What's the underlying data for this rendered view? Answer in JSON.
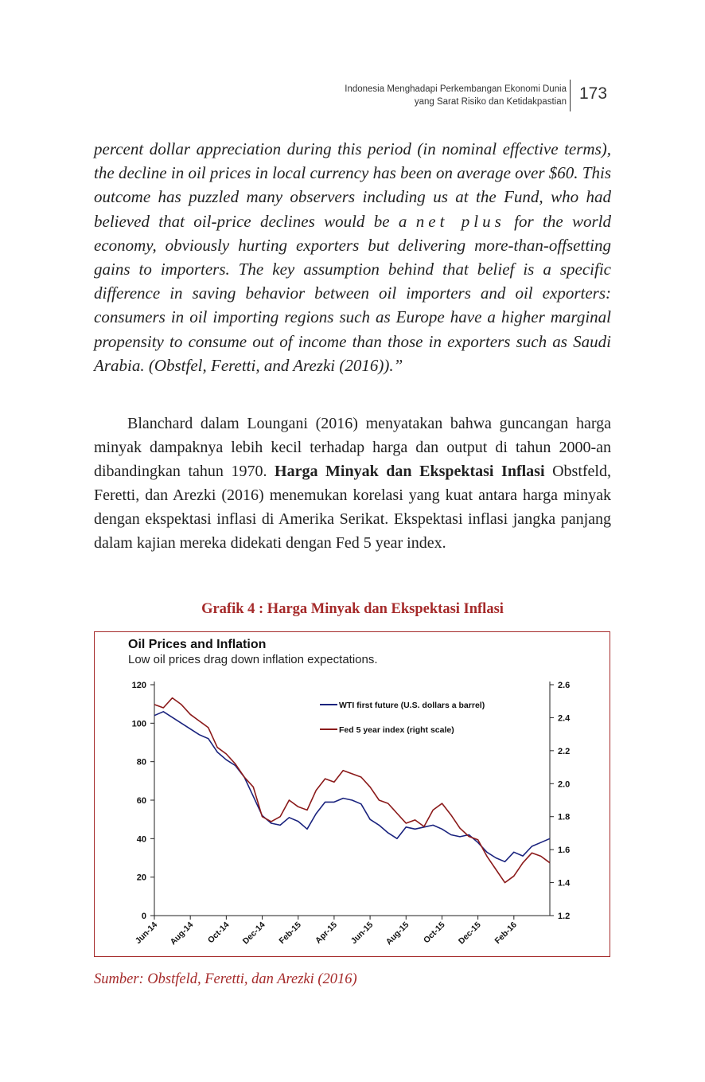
{
  "header": {
    "line1": "Indonesia Menghadapi Perkembangan Ekonomi Dunia",
    "line2": "yang Sarat Risiko dan Ketidakpastian",
    "page_number": "173"
  },
  "quote": {
    "part1": "percent dollar appreciation during this period (in nominal effective terms), the decline in oil prices in local currency has been on average over $60. This outcome has puzzled many observers including us at the Fund, who had believed that oil-price declines would be a ",
    "spaced": "net plus",
    "part2": " for the world economy, obviously hurting exporters but delivering more-than-offsetting gains to importers. The key assumption behind that belief is a specific difference in saving behavior between oil importers and oil exporters: consumers in oil importing regions such as Europe have a higher marginal propensity to consume out of income than those in exporters such as Saudi Arabia. (Obstfel, Feretti, and Arezki (2016)).”"
  },
  "paragraph": {
    "part1": "Blanchard dalam Loungani (2016) menyatakan bahwa guncangan harga minyak dampaknya lebih kecil terhadap harga dan output di tahun 2000-an dibandingkan tahun 1970. ",
    "bold": "Harga Minyak dan Ekspektasi Inflasi",
    "part2": " Obstfeld, Feretti, dan Arezki (2016) menemukan korelasi yang kuat antara harga minyak dengan ekspektasi inflasi di Amerika Serikat. Ekspektasi inflasi jangka panjang dalam kajian mereka didekati dengan Fed 5 year index."
  },
  "figure": {
    "caption": "Grafik 4 : Harga Minyak dan Ekspektasi Inflasi",
    "source": "Sumber: Obstfeld, Feretti, dan Arezki (2016)"
  },
  "chart_data": {
    "type": "line",
    "title": "Oil Prices and Inflation",
    "subtitle": "Low oil prices drag down inflation expectations.",
    "x_tick_labels": [
      "Jun-14",
      "Aug-14",
      "Oct-14",
      "Dec-14",
      "Feb-15",
      "Apr-15",
      "Jun-15",
      "Aug-15",
      "Oct-15",
      "Dec-15",
      "Feb-16"
    ],
    "left_axis": {
      "ylim": [
        0,
        120
      ],
      "ticks": [
        0,
        20,
        40,
        60,
        80,
        100,
        120
      ]
    },
    "right_axis": {
      "ylim": [
        1.2,
        2.6
      ],
      "ticks": [
        1.2,
        1.4,
        1.6,
        1.8,
        2.0,
        2.2,
        2.4,
        2.6
      ]
    },
    "x_range_months": [
      0,
      22
    ],
    "grid": false,
    "legend_position": "top-right",
    "series": [
      {
        "name": "WTI first future (U.S. dollars a barrel)",
        "axis": "left",
        "color": "#1a237e",
        "x": [
          0,
          0.5,
          1,
          1.5,
          2,
          2.5,
          3,
          3.5,
          4,
          4.5,
          5,
          5.5,
          6,
          6.5,
          7,
          7.5,
          8,
          8.5,
          9,
          9.5,
          10,
          10.5,
          11,
          11.5,
          12,
          12.5,
          13,
          13.5,
          14,
          14.5,
          15,
          15.5,
          16,
          16.5,
          17,
          17.5,
          18,
          18.5,
          19,
          19.5,
          20,
          20.5,
          21,
          21.5,
          22
        ],
        "y": [
          104,
          106,
          103,
          100,
          97,
          94,
          92,
          85,
          81,
          78,
          72,
          62,
          52,
          48,
          47,
          51,
          49,
          45,
          53,
          59,
          59,
          61,
          60,
          58,
          50,
          47,
          43,
          40,
          46,
          45,
          46,
          47,
          45,
          42,
          41,
          42,
          38,
          33,
          30,
          28,
          33,
          31,
          36,
          38,
          40
        ]
      },
      {
        "name": "Fed 5 year index (right scale)",
        "axis": "right",
        "color": "#8b1a1a",
        "x": [
          0,
          0.5,
          1,
          1.5,
          2,
          2.5,
          3,
          3.5,
          4,
          4.5,
          5,
          5.5,
          6,
          6.5,
          7,
          7.5,
          8,
          8.5,
          9,
          9.5,
          10,
          10.5,
          11,
          11.5,
          12,
          12.5,
          13,
          13.5,
          14,
          14.5,
          15,
          15.5,
          16,
          16.5,
          17,
          17.5,
          18,
          18.5,
          19,
          19.5,
          20,
          20.5,
          21,
          21.5,
          22
        ],
        "y": [
          2.48,
          2.46,
          2.52,
          2.48,
          2.42,
          2.38,
          2.34,
          2.22,
          2.18,
          2.12,
          2.04,
          1.98,
          1.8,
          1.77,
          1.8,
          1.9,
          1.86,
          1.84,
          1.96,
          2.03,
          2.01,
          2.08,
          2.06,
          2.04,
          1.98,
          1.9,
          1.88,
          1.82,
          1.76,
          1.78,
          1.74,
          1.84,
          1.88,
          1.81,
          1.73,
          1.68,
          1.66,
          1.56,
          1.48,
          1.4,
          1.44,
          1.52,
          1.58,
          1.56,
          1.52
        ]
      }
    ]
  },
  "colors": {
    "accent": "#a52a2a",
    "oil_line": "#1a237e",
    "fed_line": "#8b1a1a"
  }
}
